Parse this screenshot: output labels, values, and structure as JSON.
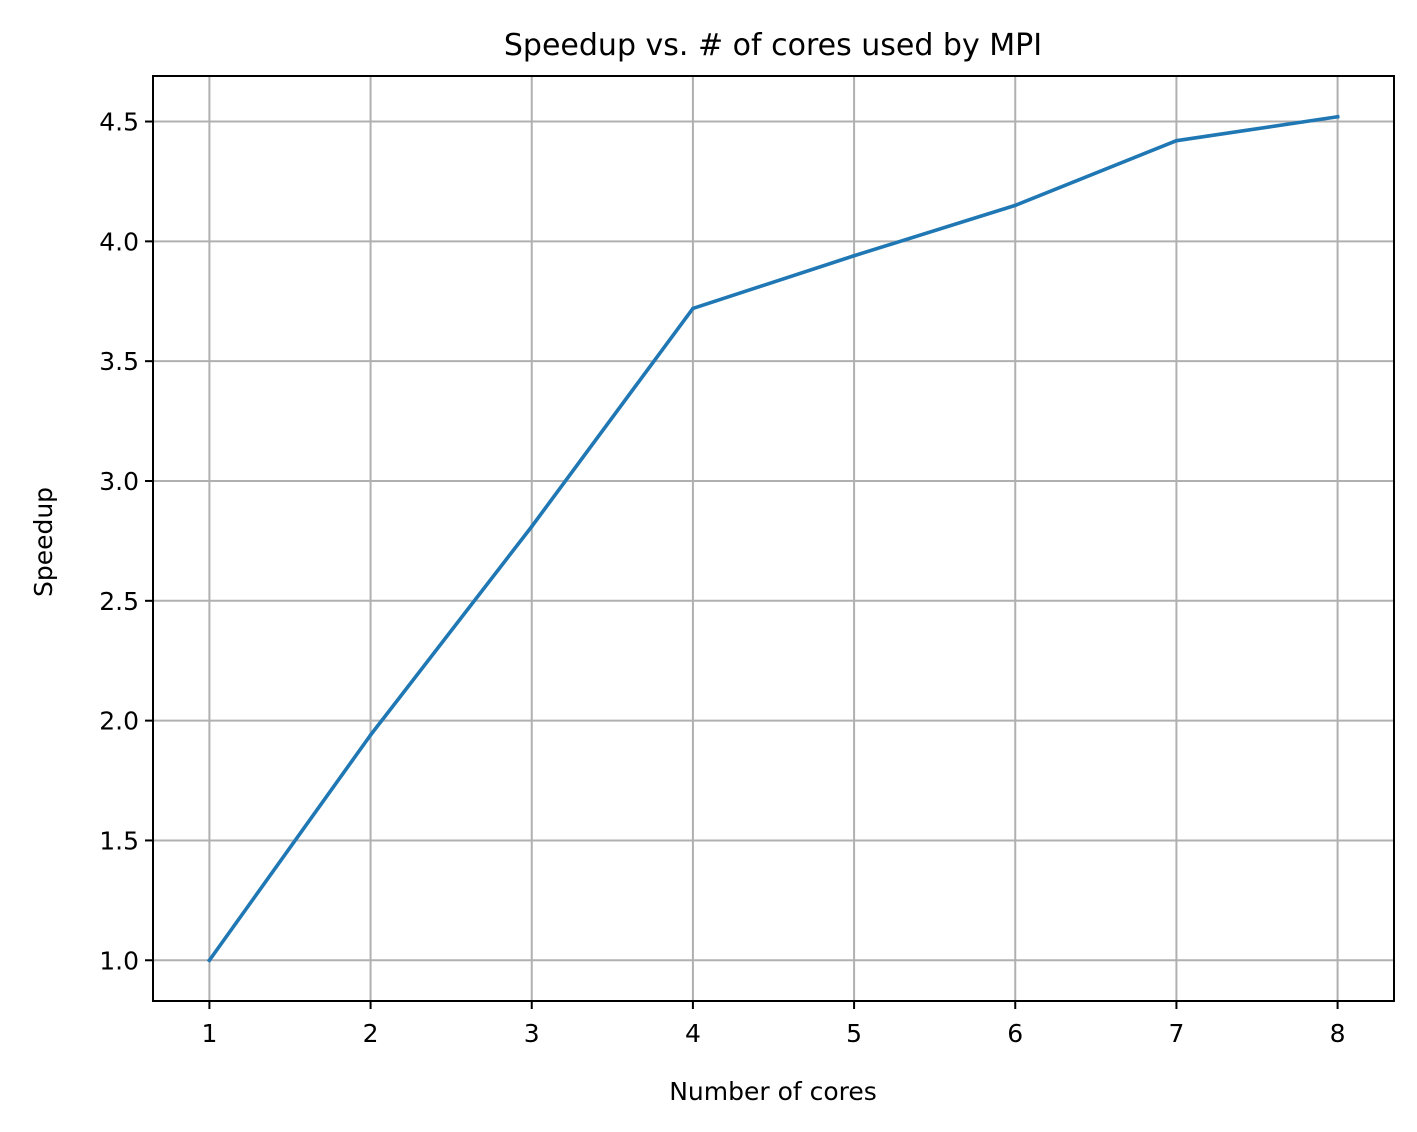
{
  "chart_data": {
    "type": "line",
    "title": "Speedup vs. # of cores used by MPI",
    "xlabel": "Number of cores",
    "ylabel": "Speedup",
    "x": [
      1,
      2,
      3,
      4,
      5,
      6,
      7,
      8
    ],
    "series": [
      {
        "values": [
          1.0,
          1.94,
          2.81,
          3.72,
          3.94,
          4.15,
          4.42,
          4.52
        ],
        "color": "#1f77b4"
      }
    ],
    "xticks": [
      1,
      2,
      3,
      4,
      5,
      6,
      7,
      8
    ],
    "xtick_labels": [
      "1",
      "2",
      "3",
      "4",
      "5",
      "6",
      "7",
      "8"
    ],
    "yticks": [
      1.0,
      1.5,
      2.0,
      2.5,
      3.0,
      3.5,
      4.0,
      4.5
    ],
    "ytick_labels": [
      "1.0",
      "1.5",
      "2.0",
      "2.5",
      "3.0",
      "3.5",
      "4.0",
      "4.5"
    ],
    "xlim": [
      0.65,
      8.35
    ],
    "ylim": [
      0.83,
      4.69
    ],
    "grid": true,
    "legend": "none"
  }
}
